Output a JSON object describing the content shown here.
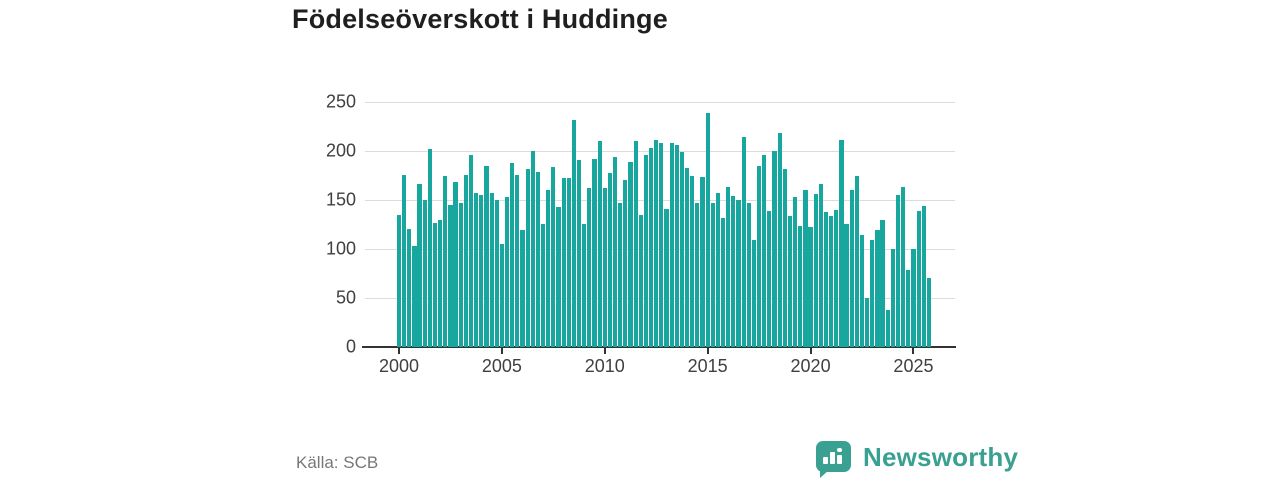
{
  "title": "Födelseöverskott i Huddinge",
  "source": "Källa: SCB",
  "brand": {
    "name": "Newsworthy",
    "color": "#3aa092",
    "icon": "chart-bars-in-speech-bubble"
  },
  "colors": {
    "bar": "#18a79e",
    "gridline": "#dcdcdc",
    "axis": "#333333",
    "title": "#1f1f1f",
    "tick_label": "#404040",
    "source_text": "#75787b"
  },
  "chart_data": {
    "type": "bar",
    "title": "Födelseöverskott i Huddinge",
    "xlabel": "",
    "ylabel": "",
    "frequency": "quarterly",
    "x_start": "2000 Q1",
    "x_end": "2025 Q4",
    "xtick_labels": [
      "2000",
      "2005",
      "2010",
      "2015",
      "2020",
      "2025"
    ],
    "xtick_years": [
      2000,
      2005,
      2010,
      2015,
      2020,
      2025
    ],
    "ytick_labels": [
      "0",
      "50",
      "100",
      "150",
      "200",
      "250"
    ],
    "yticks": [
      0,
      50,
      100,
      150,
      200,
      250
    ],
    "ylim": [
      0,
      250
    ],
    "grid": "horizontal",
    "legend": "none",
    "values": [
      135,
      176,
      120,
      103,
      166,
      150,
      202,
      127,
      130,
      175,
      145,
      168,
      147,
      176,
      196,
      157,
      155,
      185,
      157,
      150,
      105,
      153,
      188,
      176,
      119,
      182,
      200,
      179,
      126,
      160,
      184,
      143,
      172,
      172,
      232,
      191,
      126,
      162,
      192,
      210,
      162,
      178,
      194,
      147,
      170,
      189,
      210,
      135,
      196,
      203,
      211,
      208,
      141,
      208,
      206,
      199,
      183,
      174,
      147,
      173,
      239,
      147,
      157,
      132,
      163,
      154,
      150,
      214,
      147,
      109,
      185,
      196,
      139,
      200,
      218,
      182,
      134,
      153,
      123,
      160,
      122,
      156,
      166,
      138,
      134,
      140,
      211,
      126,
      160,
      174,
      114,
      50,
      109,
      119,
      130,
      38,
      100,
      155,
      163,
      79,
      100,
      139,
      144,
      70
    ]
  }
}
